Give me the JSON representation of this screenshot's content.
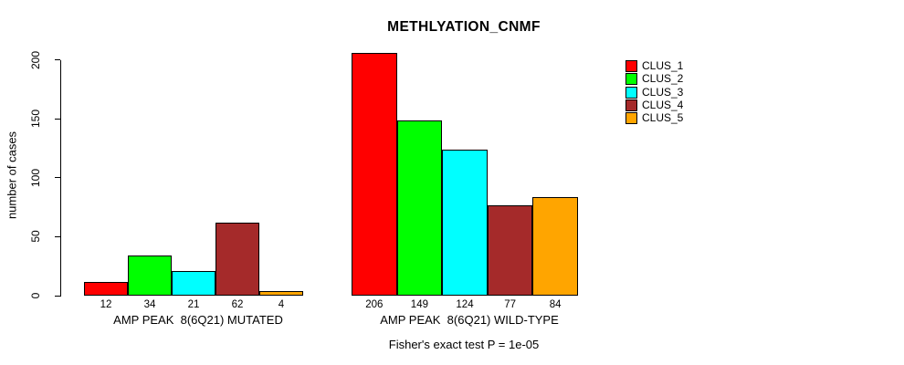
{
  "chart_data": {
    "type": "bar",
    "title": "METHLYATION_CNMF",
    "ylabel": "number of cases",
    "xlabel": "",
    "ylim": [
      0,
      206
    ],
    "yticks": [
      0,
      50,
      100,
      150,
      200
    ],
    "grid": false,
    "legend_position": "right",
    "bar_value_labels_shown": true,
    "categories": [
      "AMP PEAK  8(6Q21) MUTATED",
      "AMP PEAK  8(6Q21) WILD-TYPE"
    ],
    "series": [
      {
        "name": "CLUS_1",
        "color": "#ff0000",
        "values": [
          12,
          206
        ]
      },
      {
        "name": "CLUS_2",
        "color": "#00ff00",
        "values": [
          34,
          149
        ]
      },
      {
        "name": "CLUS_3",
        "color": "#00ffff",
        "values": [
          21,
          124
        ]
      },
      {
        "name": "CLUS_4",
        "color": "#a52a2a",
        "values": [
          62,
          77
        ]
      },
      {
        "name": "CLUS_5",
        "color": "#ffa500",
        "values": [
          4,
          84
        ]
      }
    ],
    "annotation": "Fisher's exact test P = 1e-05"
  }
}
